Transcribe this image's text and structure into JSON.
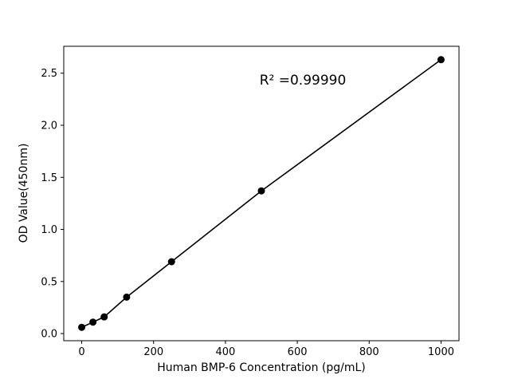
{
  "figure": {
    "background": "#ffffff"
  },
  "chart_data": {
    "type": "scatter",
    "title": "",
    "xlabel": "Human BMP-6 Concentration (pg/mL)",
    "ylabel": "OD Value(450nm)",
    "annotation": "R² =0.99990",
    "x": [
      0,
      31.25,
      62.5,
      125,
      250,
      500,
      1000
    ],
    "y": [
      0.06,
      0.11,
      0.16,
      0.35,
      0.69,
      1.37,
      2.63
    ],
    "xlim": [
      -50,
      1050
    ],
    "ylim": [
      -0.0685,
      2.7585
    ],
    "xticks": [
      0,
      200,
      400,
      600,
      800,
      1000
    ],
    "xtick_labels": [
      "0",
      "200",
      "400",
      "600",
      "800",
      "1000"
    ],
    "yticks": [
      0,
      0.5,
      1.0,
      1.5,
      2.0,
      2.5
    ],
    "ytick_labels": [
      "0.0",
      "0.5",
      "1.0",
      "1.5",
      "2.0",
      "2.5"
    ],
    "grid": false,
    "line_color": "#000000",
    "marker_color": "#000000",
    "marker": "circle"
  }
}
